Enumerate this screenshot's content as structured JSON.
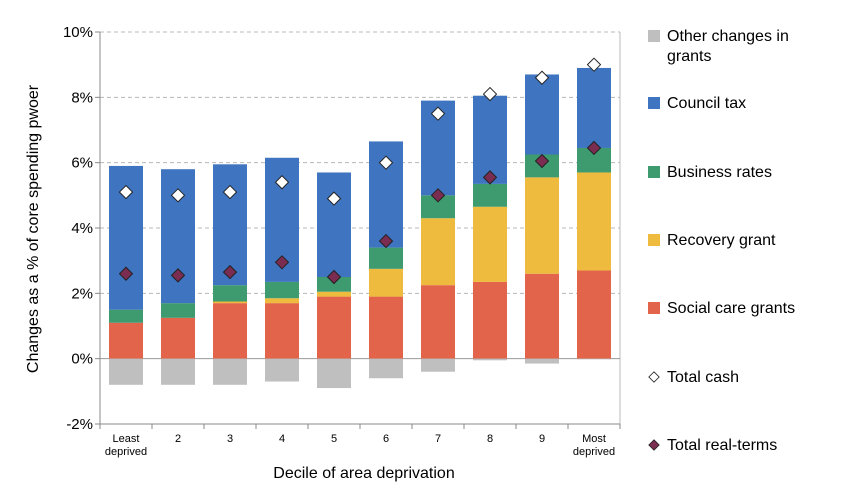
{
  "chart_data": {
    "type": "bar",
    "stacked": true,
    "title": "",
    "xlabel": "Decile of area deprivation",
    "ylabel": "Changes as a % of core spending pwoer",
    "ylim": [
      -2,
      10
    ],
    "yticks": [
      -2,
      0,
      2,
      4,
      6,
      8,
      10
    ],
    "ytick_labels": [
      "-2%",
      "0%",
      "2%",
      "4%",
      "6%",
      "8%",
      "10%"
    ],
    "grid": "horizontal dashed",
    "categories": [
      [
        "Least",
        "deprived"
      ],
      [
        "2"
      ],
      [
        "3"
      ],
      [
        "4"
      ],
      [
        "5"
      ],
      [
        "6"
      ],
      [
        "7"
      ],
      [
        "8"
      ],
      [
        "9"
      ],
      [
        "Most",
        "deprived"
      ]
    ],
    "series": [
      {
        "name": "Other changes in grants",
        "color": "#bfbfbf",
        "values": [
          -0.8,
          -0.8,
          -0.8,
          -0.7,
          -0.9,
          -0.6,
          -0.4,
          -0.05,
          -0.15,
          -0.02
        ]
      },
      {
        "name": "Council tax",
        "color": "#3f74c0",
        "values": [
          4.4,
          4.1,
          3.7,
          3.8,
          3.2,
          3.25,
          2.9,
          2.7,
          2.45,
          2.45
        ]
      },
      {
        "name": "Business rates",
        "color": "#3e9a6f",
        "values": [
          0.4,
          0.45,
          0.5,
          0.5,
          0.45,
          0.65,
          0.7,
          0.7,
          0.7,
          0.75
        ]
      },
      {
        "name": "Recovery grant",
        "color": "#efbb3e",
        "values": [
          0.0,
          0.0,
          0.05,
          0.15,
          0.15,
          0.85,
          2.05,
          2.3,
          2.95,
          3.0
        ]
      },
      {
        "name": "Social care grants",
        "color": "#e2644b",
        "values": [
          1.1,
          1.25,
          1.7,
          1.7,
          1.9,
          1.9,
          2.25,
          2.35,
          2.6,
          2.7
        ]
      }
    ],
    "markers": [
      {
        "name": "Total cash",
        "color": "#ffffff",
        "edge": "#222222",
        "values": [
          5.1,
          5.0,
          5.1,
          5.4,
          4.9,
          6.0,
          7.5,
          8.1,
          8.6,
          9.0
        ]
      },
      {
        "name": "Total real-terms",
        "color": "#7b2c51",
        "edge": "#222222",
        "values": [
          2.6,
          2.55,
          2.65,
          2.95,
          2.5,
          3.6,
          5.0,
          5.55,
          6.05,
          6.45
        ]
      }
    ],
    "legend_position": "right"
  },
  "legend": {
    "items": [
      {
        "label": "Other changes in grants",
        "kind": "swatch",
        "color": "#bfbfbf"
      },
      {
        "label": "Council tax",
        "kind": "swatch",
        "color": "#3f74c0"
      },
      {
        "label": "Business rates",
        "kind": "swatch",
        "color": "#3e9a6f"
      },
      {
        "label": "Recovery grant",
        "kind": "swatch",
        "color": "#efbb3e"
      },
      {
        "label": "Social care grants",
        "kind": "swatch",
        "color": "#e2644b"
      },
      {
        "label": "Total cash",
        "kind": "diamond",
        "color": "#ffffff"
      },
      {
        "label": "Total real-terms",
        "kind": "diamond",
        "color": "#7b2c51"
      }
    ]
  }
}
